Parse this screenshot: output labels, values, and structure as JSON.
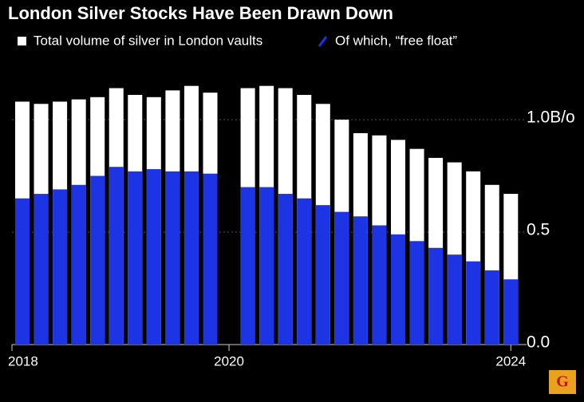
{
  "chart_data": {
    "type": "bar",
    "title": "London Silver Stocks Have Been Drawn Down",
    "categories": [
      "2018",
      null,
      null,
      null,
      null,
      null,
      null,
      null,
      null,
      null,
      null,
      "2020",
      null,
      null,
      null,
      null,
      null,
      null,
      null,
      null,
      null,
      null,
      null,
      null,
      null,
      null,
      "2024"
    ],
    "series": [
      {
        "name": "Total volume of silver in London vaults",
        "color": "#ffffff",
        "values": [
          1.08,
          1.07,
          1.08,
          1.09,
          1.1,
          1.14,
          1.11,
          1.1,
          1.13,
          1.15,
          1.12,
          null,
          1.14,
          1.15,
          1.14,
          1.11,
          1.07,
          1.0,
          0.94,
          0.93,
          0.91,
          0.87,
          0.83,
          0.81,
          0.77,
          0.71,
          0.67
        ]
      },
      {
        "name": "Of which, “free float”",
        "color": "#1d34e4",
        "values": [
          0.65,
          0.67,
          0.69,
          0.71,
          0.75,
          0.79,
          0.77,
          0.78,
          0.77,
          0.77,
          0.76,
          null,
          0.7,
          0.7,
          0.67,
          0.65,
          0.62,
          0.59,
          0.57,
          0.53,
          0.49,
          0.46,
          0.43,
          0.4,
          0.37,
          0.33,
          0.29
        ]
      }
    ],
    "ylim": [
      0,
      1.2
    ],
    "yticks": [
      {
        "value": 0,
        "label": "0.0"
      },
      0.5,
      {
        "value": 1.0,
        "label": "1.0B/o"
      }
    ],
    "grid": true,
    "logo": "G"
  }
}
